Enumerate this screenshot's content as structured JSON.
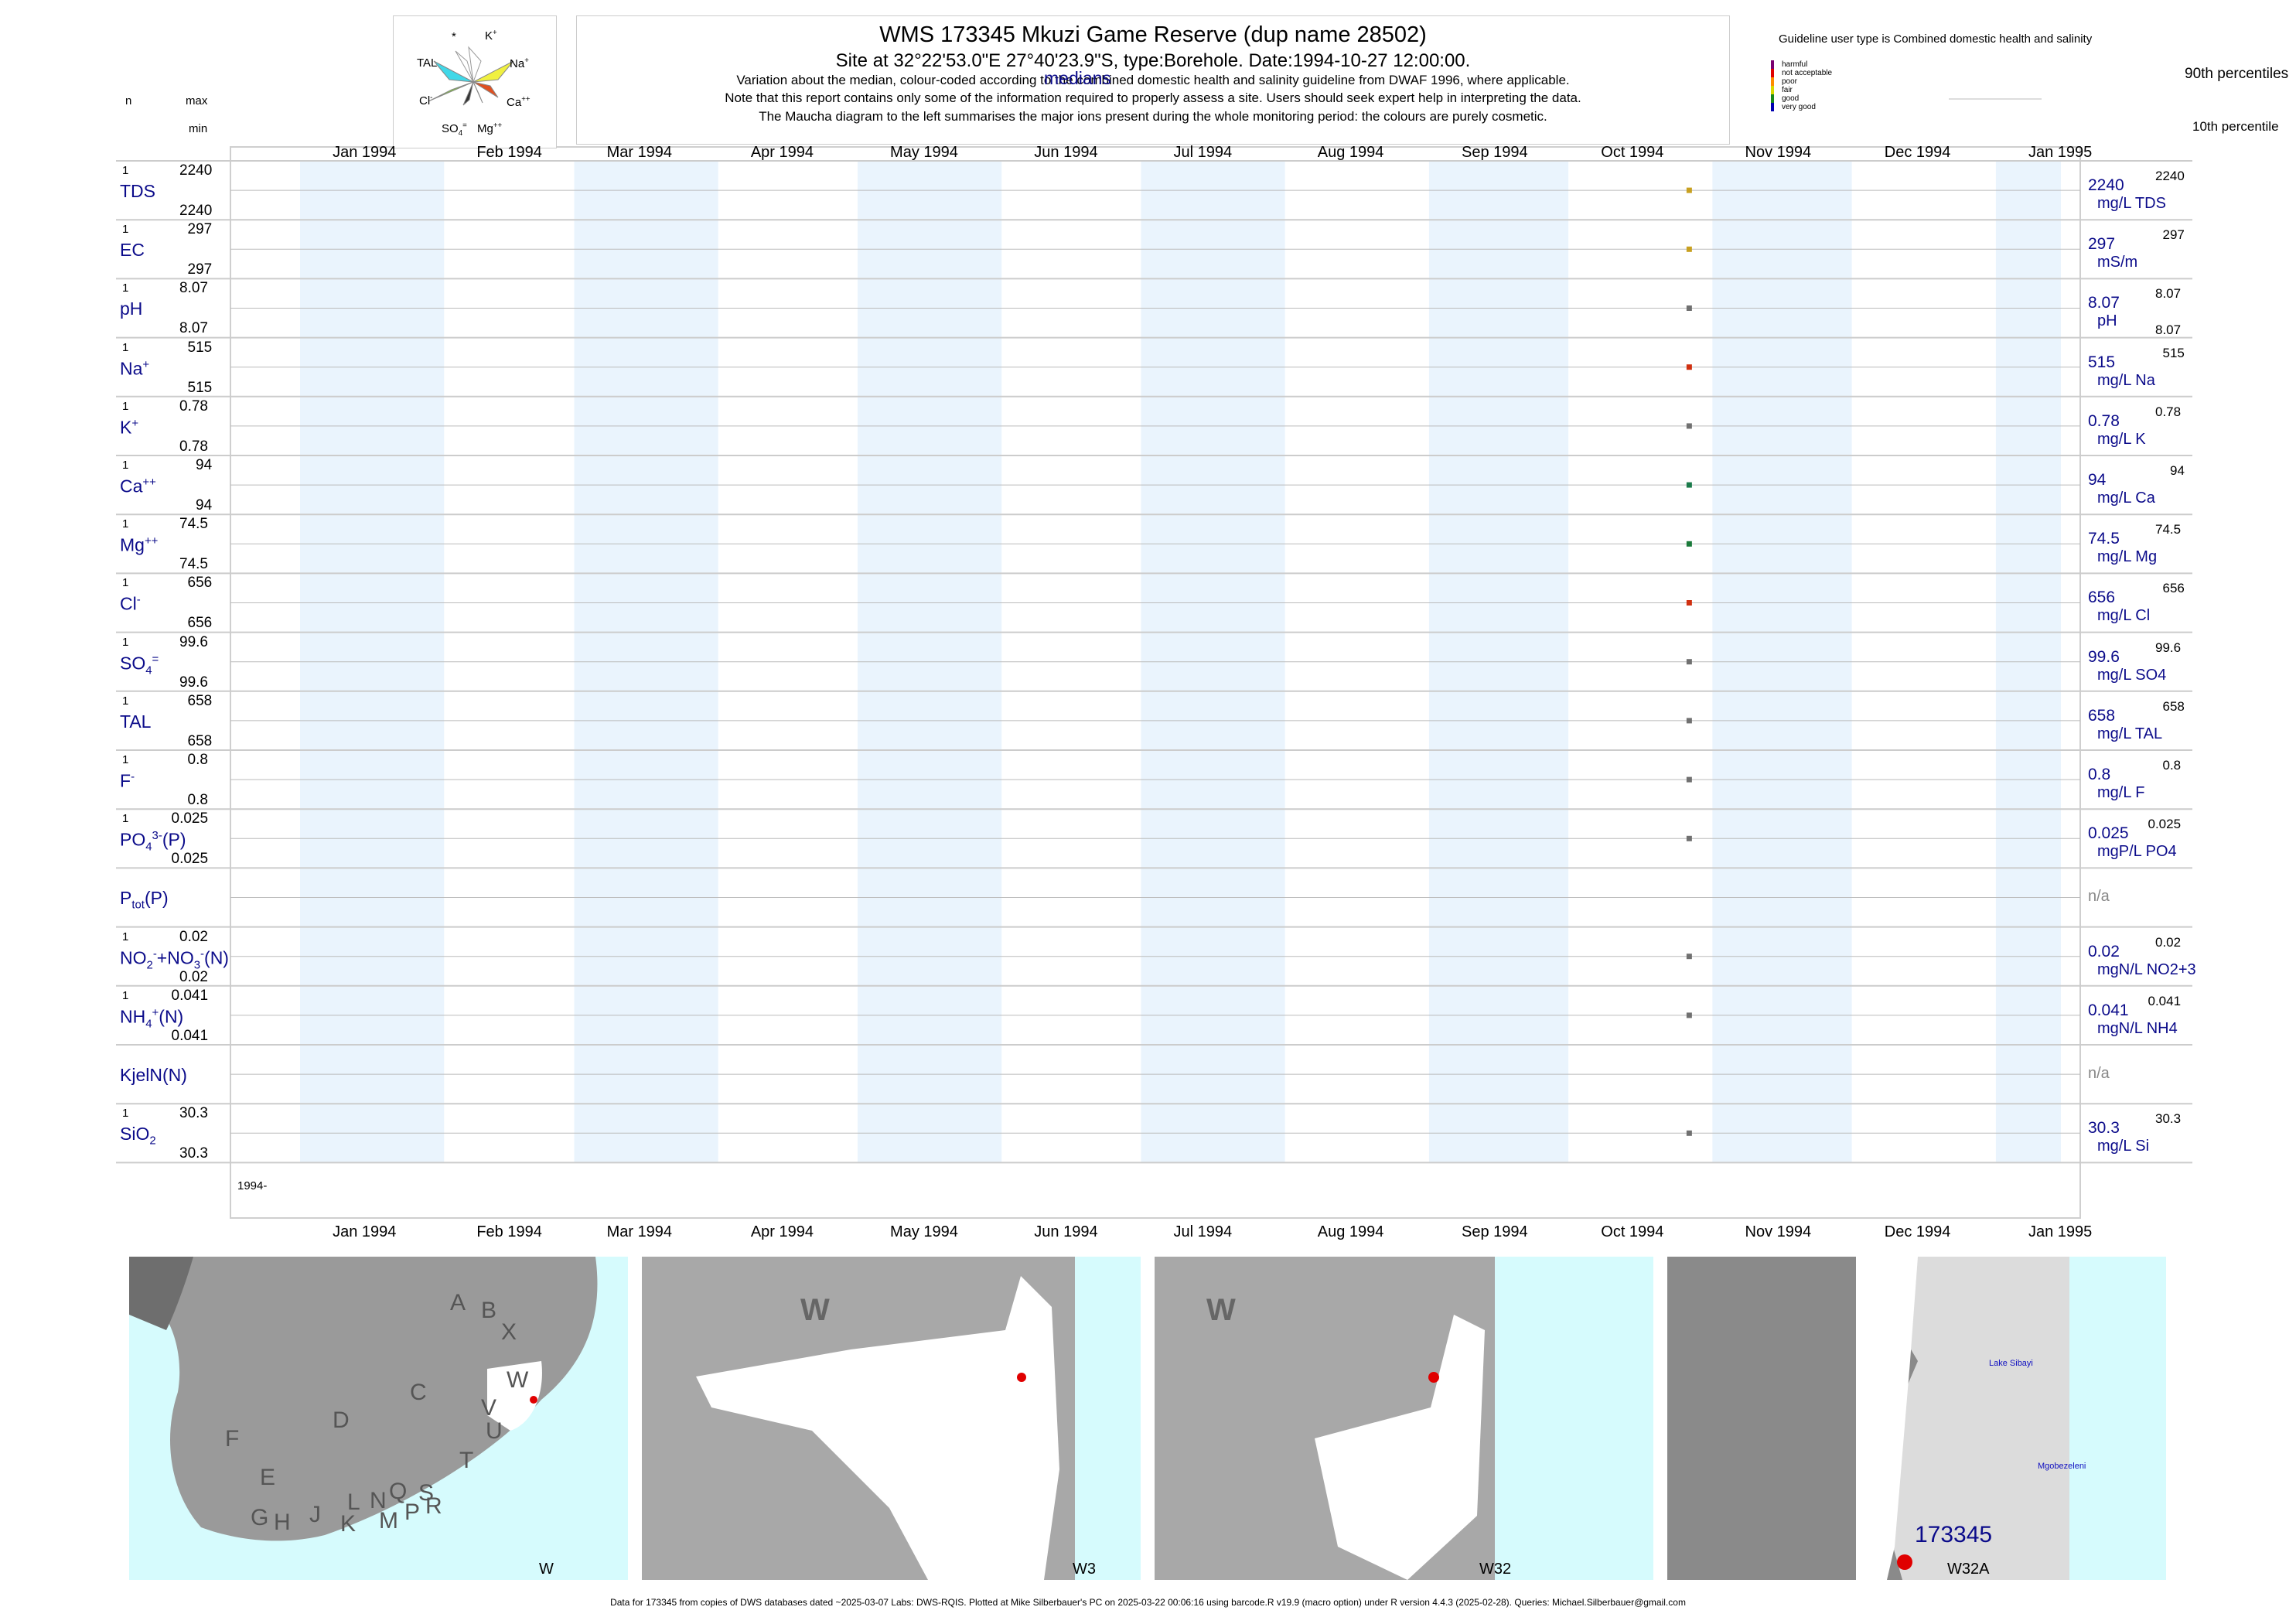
{
  "header": {
    "title": "WMS 173345  Mkuzi Game Reserve (dup name 28502)",
    "subtitle": "Site at 32°22'53.0\"E 27°40'23.9\"S, type:Borehole. Date:1994-10-27 12:00:00.",
    "note1": "Variation about the median,  colour-coded according to the combined domestic health and salinity guideline from DWAF 1996, where applicable.",
    "note2": "Note that this report contains only some of the information required to properly assess a site. Users should seek expert help in interpreting the data.",
    "note3": "The Maucha diagram to the left summarises the major ions present during the whole monitoring period: the colours are purely cosmetic."
  },
  "left_header": {
    "n": "n",
    "max": "max",
    "min": "min"
  },
  "maucha": {
    "labels": {
      "star": "*",
      "k": "K",
      "tal": "TAL",
      "na": "Na",
      "cl": "Cl",
      "ca": "Ca",
      "so4": "SO",
      "mg": "Mg"
    }
  },
  "legend": {
    "guideline": "Guideline user type is Combined domestic health and salinity",
    "categories": [
      {
        "name": "harmful",
        "color": "#7a0070"
      },
      {
        "name": "not acceptable",
        "color": "#e00000"
      },
      {
        "name": "poor",
        "color": "#ff8c00"
      },
      {
        "name": "fair",
        "color": "#d8d800"
      },
      {
        "name": "good",
        "color": "#1a8a1a"
      },
      {
        "name": "very good",
        "color": "#0000b0"
      }
    ],
    "p90": "90th percentiles",
    "medians": "medians",
    "p10": "10th percentile"
  },
  "chart_data": {
    "type": "scatter",
    "x_range": [
      "1994-01-01",
      "1995-01-15"
    ],
    "sample_date": "1994-10-27",
    "months": [
      "Jan 1994",
      "Feb 1994",
      "Mar 1994",
      "Apr 1994",
      "May 1994",
      "Jun 1994",
      "Jul 1994",
      "Aug 1994",
      "Sep 1994",
      "Oct 1994",
      "Nov 1994",
      "Dec 1994",
      "Jan 1995"
    ],
    "month_dates": [
      "1994-01-15",
      "1994-02-15",
      "1994-03-15",
      "1994-04-15",
      "1994-05-15",
      "1994-06-15",
      "1994-07-15",
      "1994-08-15",
      "1994-09-15",
      "1994-10-15",
      "1994-11-15",
      "1994-12-15",
      "1995-01-15"
    ],
    "year_label": "1994-",
    "parameters": [
      {
        "name": "TDS",
        "n": "1",
        "max": "2240",
        "min": "2240",
        "median": "2240",
        "unit": "mg/L TDS",
        "rmax": "2240",
        "rmin": "",
        "value": 2240,
        "color": "#c8a020"
      },
      {
        "name": "EC",
        "n": "1",
        "max": "297",
        "min": "297",
        "median": "297",
        "unit": "mS/m",
        "rmax": "297",
        "rmin": "",
        "value": 297,
        "color": "#c8a020"
      },
      {
        "name": "pH",
        "n": "1",
        "max": "8.07",
        "min": "8.07",
        "median": "8.07",
        "unit": "pH",
        "rmax": "8.07",
        "rmin": "8.07",
        "value": 8.07,
        "color": "#707070"
      },
      {
        "name": "Na",
        "n": "1",
        "max": "515",
        "min": "515",
        "median": "515",
        "unit": "mg/L Na",
        "rmax": "515",
        "rmin": "",
        "value": 515,
        "color": "#d03010"
      },
      {
        "name": "K",
        "n": "1",
        "max": "0.78",
        "min": "0.78",
        "median": "0.78",
        "unit": "mg/L K",
        "rmax": "0.78",
        "rmin": "",
        "value": 0.78,
        "color": "#707070"
      },
      {
        "name": "Ca",
        "n": "1",
        "max": "94",
        "min": "94",
        "median": "94",
        "unit": "mg/L Ca",
        "rmax": "94",
        "rmin": "",
        "value": 94,
        "color": "#1a7a4a"
      },
      {
        "name": "Mg",
        "n": "1",
        "max": "74.5",
        "min": "74.5",
        "median": "74.5",
        "unit": "mg/L Mg",
        "rmax": "74.5",
        "rmin": "",
        "value": 74.5,
        "color": "#1a7a3a"
      },
      {
        "name": "Cl",
        "n": "1",
        "max": "656",
        "min": "656",
        "median": "656",
        "unit": "mg/L Cl",
        "rmax": "656",
        "rmin": "",
        "value": 656,
        "color": "#d03010"
      },
      {
        "name": "SO4",
        "n": "1",
        "max": "99.6",
        "min": "99.6",
        "median": "99.6",
        "unit": "mg/L SO4",
        "rmax": "99.6",
        "rmin": "",
        "value": 99.6,
        "color": "#707070"
      },
      {
        "name": "TAL",
        "n": "1",
        "max": "658",
        "min": "658",
        "median": "658",
        "unit": "mg/L TAL",
        "rmax": "658",
        "rmin": "",
        "value": 658,
        "color": "#707070"
      },
      {
        "name": "F",
        "n": "1",
        "max": "0.8",
        "min": "0.8",
        "median": "0.8",
        "unit": "mg/L F",
        "rmax": "0.8",
        "rmin": "",
        "value": 0.8,
        "color": "#707070"
      },
      {
        "name": "PO4(P)",
        "n": "1",
        "max": "0.025",
        "min": "0.025",
        "median": "0.025",
        "unit": "mgP/L PO4",
        "rmax": "0.025",
        "rmin": "",
        "value": 0.025,
        "color": "#707070"
      },
      {
        "name": "Ptot(P)",
        "n": "",
        "max": "",
        "min": "",
        "median": "n/a",
        "unit": "",
        "rmax": "",
        "rmin": "",
        "value": null,
        "color": ""
      },
      {
        "name": "NO2+NO3(N)",
        "n": "1",
        "max": "0.02",
        "min": "0.02",
        "median": "0.02",
        "unit": "mgN/L NO2+3",
        "rmax": "0.02",
        "rmin": "",
        "value": 0.02,
        "color": "#707070"
      },
      {
        "name": "NH4(N)",
        "n": "1",
        "max": "0.041",
        "min": "0.041",
        "median": "0.041",
        "unit": "mgN/L NH4",
        "rmax": "0.041",
        "rmin": "",
        "value": 0.041,
        "color": "#707070"
      },
      {
        "name": "KjelN(N)",
        "n": "",
        "max": "",
        "min": "",
        "median": "n/a",
        "unit": "",
        "rmax": "",
        "rmin": "",
        "value": null,
        "color": ""
      },
      {
        "name": "SiO2",
        "n": "1",
        "max": "30.3",
        "min": "30.3",
        "median": "30.3",
        "unit": "mg/L Si",
        "rmax": "30.3",
        "rmin": "",
        "value": 30.3,
        "color": "#707070"
      }
    ]
  },
  "maps": [
    {
      "corner": "W",
      "letters": [
        "A",
        "B",
        "X",
        "W",
        "C",
        "V",
        "U",
        "D",
        "T",
        "F",
        "E",
        "L",
        "N",
        "Q",
        "S",
        "R",
        "G",
        "H",
        "J",
        "K",
        "M",
        "P"
      ]
    },
    {
      "corner": "W3",
      "big": "W"
    },
    {
      "corner": "W32",
      "big": "W"
    },
    {
      "corner": "W32A",
      "site": "173345",
      "place1": "Lake Sibayi",
      "place2": "Mgobezeleni"
    }
  ],
  "footer": "Data for 173345 from copies of DWS databases dated ~2025-03-07 Labs: DWS-RQIS. Plotted at Mike Silberbauer's PC on 2025-03-22 00:06:16 using barcode.R v19.9 (macro option) under R version 4.4.3 (2025-02-28). Queries: Michael.Silberbauer@gmail.com"
}
